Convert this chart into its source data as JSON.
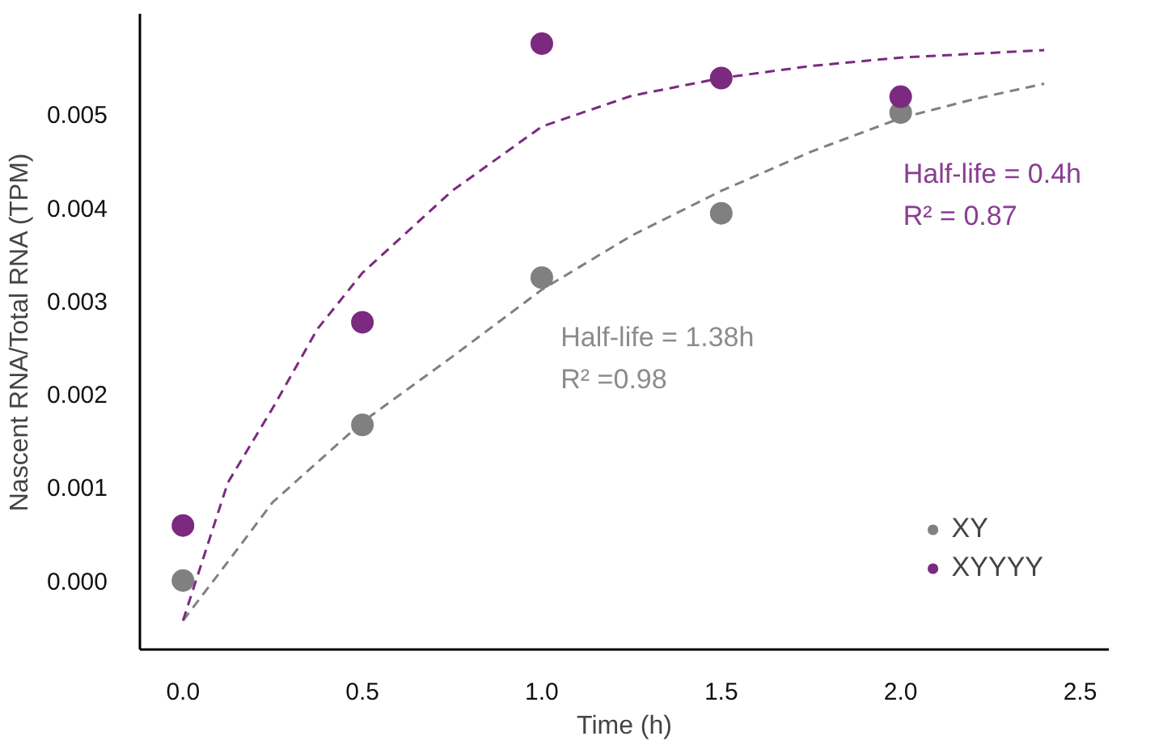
{
  "chart_data": {
    "type": "scatter",
    "xlabel": "Time (h)",
    "ylabel": "Nascent RNA/Total RNA (TPM)",
    "xlim": [
      -0.12,
      2.58
    ],
    "ylim": [
      -0.00074,
      0.00608
    ],
    "xticks": [
      {
        "value": 0,
        "label": "0.0"
      },
      0.5,
      {
        "value": 1,
        "label": "1.0"
      },
      1.5,
      {
        "value": 2,
        "label": "2.0"
      },
      2.5
    ],
    "yticks": [
      {
        "value": 0,
        "label": "0.000"
      },
      0.001,
      0.002,
      0.003,
      0.004,
      0.005
    ],
    "grid": false,
    "legend": "bottom right",
    "series": [
      {
        "name": "XY",
        "color": "#808080",
        "marker": "circle",
        "x": [
          0,
          0.5,
          1,
          1.5,
          2
        ],
        "values": [
          0.0,
          0.00167,
          0.00325,
          0.00394,
          0.00502
        ]
      },
      {
        "name": "XYYYY",
        "color": "#7b2a80",
        "marker": "circle",
        "x": [
          0,
          0.5,
          1,
          1.5,
          2
        ],
        "values": [
          0.00059,
          0.00277,
          0.00576,
          0.00539,
          0.00519
        ]
      },
      {
        "type": "line",
        "line_style": "dashed",
        "color": "#808080",
        "x": [
          0,
          0.125,
          0.25,
          0.5,
          0.75,
          1,
          1.25,
          1.5,
          1.75,
          2,
          2.2,
          2.4
        ],
        "values": [
          -0.00043,
          0.0002,
          0.00084,
          0.0017,
          0.0024,
          0.00312,
          0.0037,
          0.00418,
          0.0046,
          0.00496,
          0.00516,
          0.00533
        ]
      },
      {
        "type": "line",
        "line_style": "dashed",
        "color": "#7b2a80",
        "x": [
          0,
          0.125,
          0.25,
          0.375,
          0.5,
          0.75,
          1,
          1.25,
          1.5,
          1.75,
          2,
          2.4
        ],
        "values": [
          -0.00043,
          0.00105,
          0.00185,
          0.0027,
          0.0033,
          0.00418,
          0.00487,
          0.0052,
          0.00539,
          0.00552,
          0.00561,
          0.00569
        ]
      }
    ],
    "annotations": [
      "Half-life = 1.38h\nR² =0.98",
      "Half-life = 0.4h\nR² = 0.87"
    ]
  }
}
